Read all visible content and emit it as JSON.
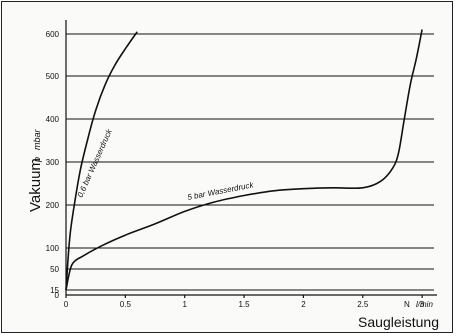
{
  "chart_data": {
    "type": "line",
    "title": "",
    "xlabel": "Saugleistung",
    "x_unit_symbol": "N",
    "x_unit": "l/min",
    "ylabel": "Vakuum",
    "y_unit_symbol": "p",
    "y_unit": "mbar",
    "xlim": [
      0,
      3.1
    ],
    "ylim": [
      0,
      620
    ],
    "y_scale": "piecewise",
    "x_ticks": [
      "0",
      "0.5",
      "1",
      "1.5",
      "2",
      "2.5",
      "3"
    ],
    "y_ticks": [
      "0",
      "15",
      "50",
      "100",
      "200",
      "300",
      "400",
      "500",
      "600"
    ],
    "grid": "horizontal",
    "series": [
      {
        "name": "0,6 bar Wasserdruck",
        "x": [
          0,
          0.03,
          0.07,
          0.12,
          0.18,
          0.25,
          0.33,
          0.41,
          0.5,
          0.6
        ],
        "y": [
          15,
          120,
          200,
          280,
          350,
          420,
          480,
          525,
          565,
          605
        ]
      },
      {
        "name": "5 bar Wasserdruck",
        "x": [
          0,
          0.05,
          0.15,
          0.3,
          0.5,
          0.75,
          1.0,
          1.25,
          1.5,
          1.75,
          2.0,
          2.25,
          2.5,
          2.65,
          2.75,
          2.8,
          2.85,
          2.9,
          2.95,
          3.0
        ],
        "y": [
          15,
          60,
          82,
          105,
          130,
          156,
          185,
          207,
          222,
          233,
          238,
          240,
          240,
          255,
          285,
          320,
          400,
          480,
          540,
          610
        ]
      }
    ]
  }
}
